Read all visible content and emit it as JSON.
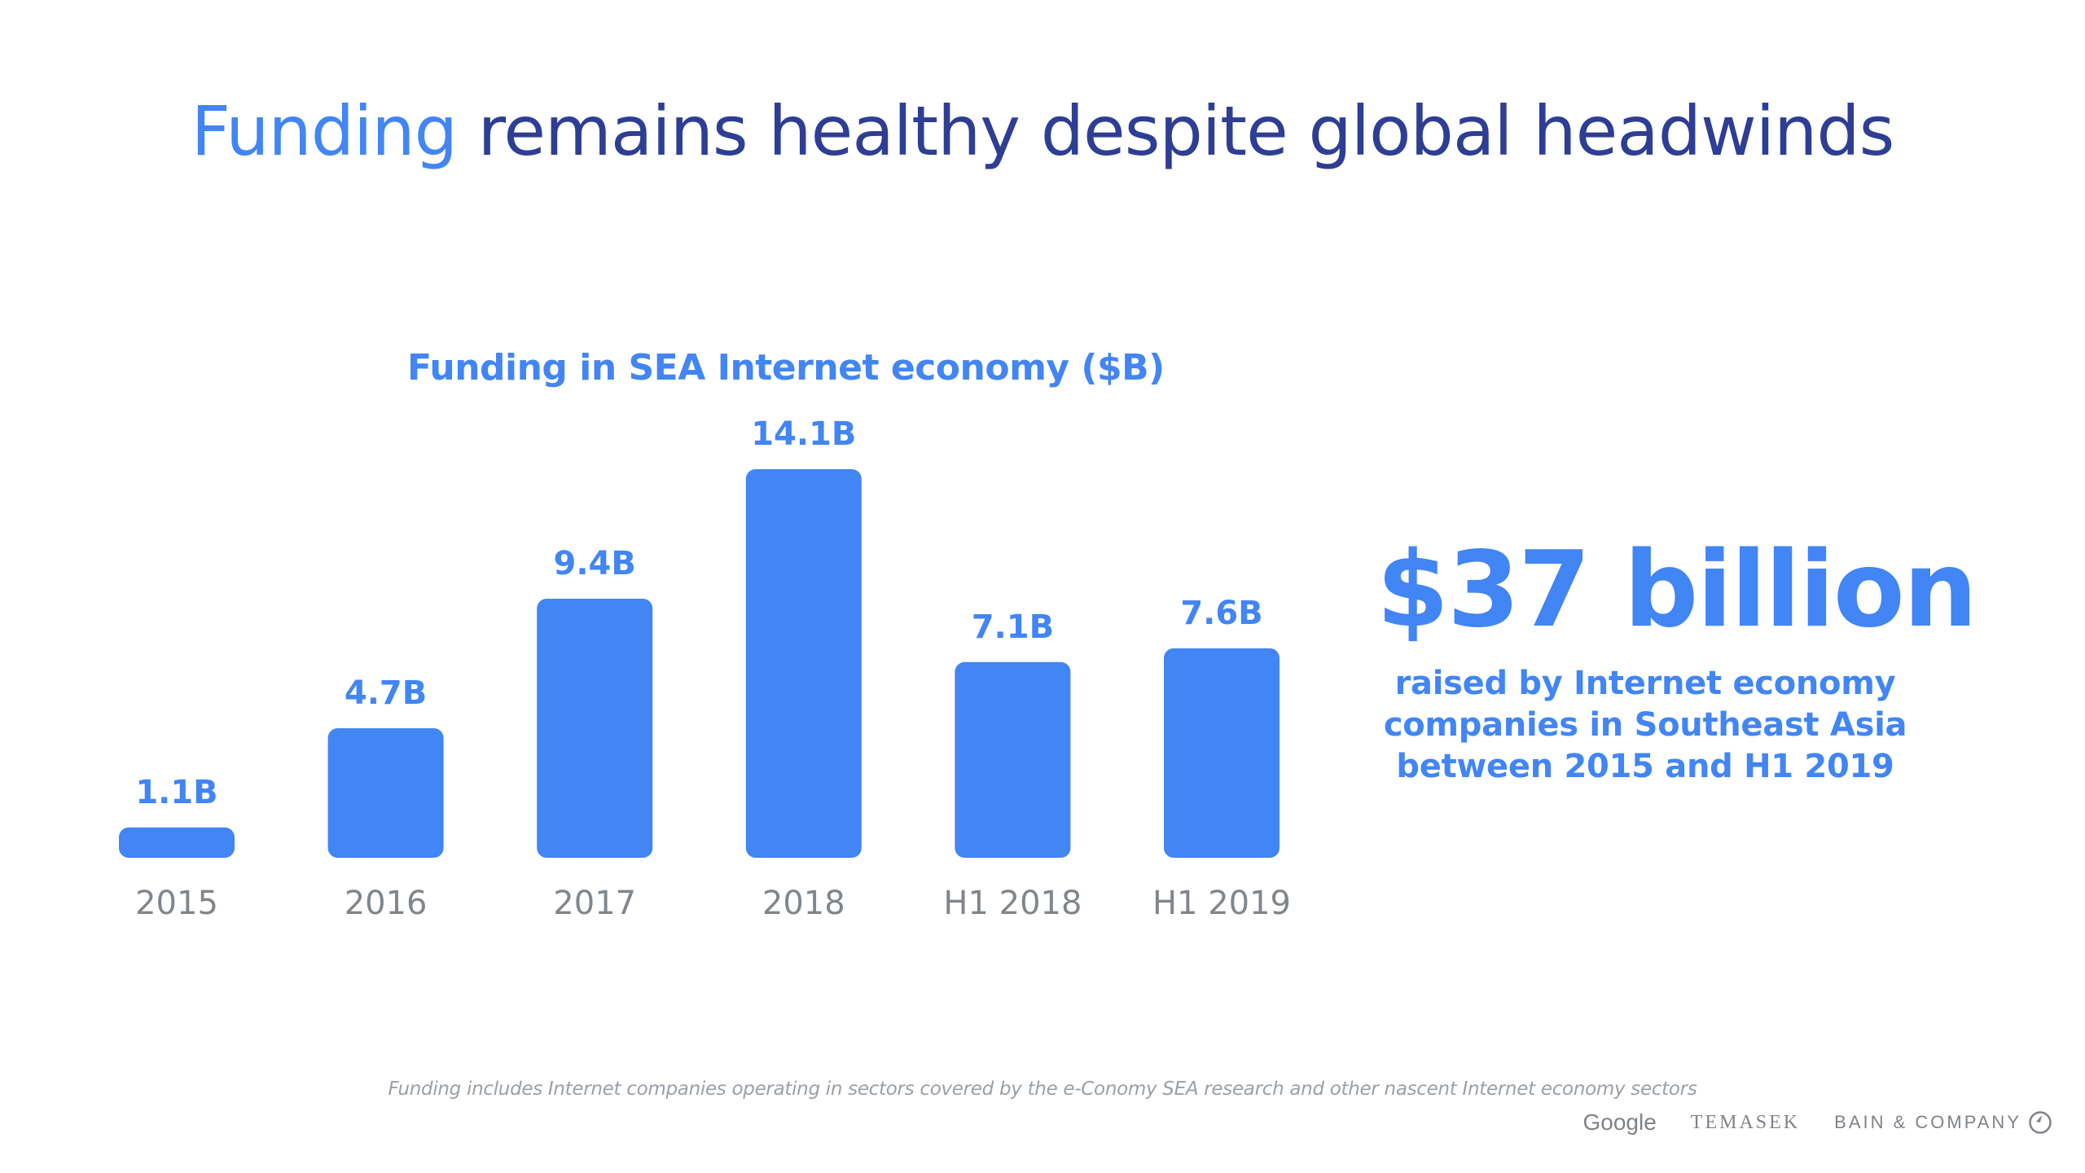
{
  "title": {
    "accent": "Funding",
    "rest": " remains healthy despite global headwinds",
    "accent_color": "#4285F4",
    "rest_color": "#2E3E94"
  },
  "chart_data": {
    "type": "bar",
    "title": "Funding in SEA Internet economy ($B)",
    "categories": [
      "2015",
      "2016",
      "2017",
      "2018",
      "H1 2018",
      "H1 2019"
    ],
    "values": [
      1.1,
      4.7,
      9.4,
      14.1,
      7.1,
      7.6
    ],
    "data_labels": [
      "1.1B",
      "4.7B",
      "9.4B",
      "14.1B",
      "7.1B",
      "7.6B"
    ],
    "xlabel": "",
    "ylabel": "",
    "ylim": [
      0,
      14.1
    ],
    "grid": false,
    "legend": "none",
    "bar_color": "#4285F4"
  },
  "callout": {
    "headline": "$37 billion",
    "lines": [
      "raised by Internet economy",
      "companies in Southeast Asia",
      "between 2015 and H1 2019"
    ]
  },
  "footnote": "Funding includes Internet companies operating in sectors covered by the e-Conomy SEA research and other nascent Internet economy sectors",
  "logos": {
    "google": "Google",
    "temasek": "TEMASEK",
    "bain": "BAIN & COMPANY",
    "bain_icon": "bain-circle-icon"
  }
}
